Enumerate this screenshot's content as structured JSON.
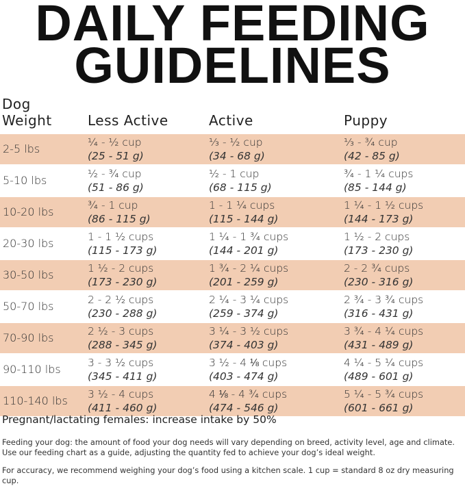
{
  "title": {
    "line1": "DAILY FEEDING",
    "line2": "GUIDELINES"
  },
  "table": {
    "headers": {
      "weight_line1": "Dog",
      "weight_line2": "Weight",
      "less_active": "Less Active",
      "active": "Active",
      "puppy": "Puppy"
    },
    "rows": [
      {
        "weight": "2-5 lbs",
        "less_cup": "¼ - ½ cup",
        "less_g": "(25 - 51 g)",
        "act_cup": "⅓ - ½ cup",
        "act_g": "(34 - 68 g)",
        "pup_cup": "⅓ - ¾ cup",
        "pup_g": "(42 - 85 g)"
      },
      {
        "weight": "5-10 lbs",
        "less_cup": "½ - ¾ cup",
        "less_g": "(51 - 86 g)",
        "act_cup": "½ - 1 cup",
        "act_g": "(68 - 115 g)",
        "pup_cup": "¾ - 1 ¼ cups",
        "pup_g": "(85 - 144 g)"
      },
      {
        "weight": "10-20 lbs",
        "less_cup": "¾ - 1 cup",
        "less_g": "(86 - 115 g)",
        "act_cup": "1 - 1 ¼ cups",
        "act_g": "(115 - 144 g)",
        "pup_cup": "1 ¼ - 1 ½ cups",
        "pup_g": "(144 - 173 g)"
      },
      {
        "weight": "20-30 lbs",
        "less_cup": "1 - 1 ½ cups",
        "less_g": "(115 - 173 g)",
        "act_cup": "1 ¼ - 1 ¾ cups",
        "act_g": "(144 - 201 g)",
        "pup_cup": "1 ½ - 2 cups",
        "pup_g": "(173 - 230 g)"
      },
      {
        "weight": "30-50 lbs",
        "less_cup": "1 ½ - 2 cups",
        "less_g": "(173 - 230 g)",
        "act_cup": "1 ¾ - 2 ¼ cups",
        "act_g": "(201 - 259 g)",
        "pup_cup": "2 - 2 ¾ cups",
        "pup_g": "(230 - 316 g)"
      },
      {
        "weight": "50-70 lbs",
        "less_cup": "2 - 2 ½ cups",
        "less_g": "(230 - 288 g)",
        "act_cup": "2 ¼ - 3 ¼ cups",
        "act_g": "(259 - 374 g)",
        "pup_cup": "2 ¾ - 3 ¾ cups",
        "pup_g": "(316 - 431 g)"
      },
      {
        "weight": "70-90 lbs",
        "less_cup": "2 ½ - 3 cups",
        "less_g": "(288 - 345 g)",
        "act_cup": "3 ¼ - 3 ½ cups",
        "act_g": "(374 - 403 g)",
        "pup_cup": "3 ¾ - 4 ¼ cups",
        "pup_g": "(431 - 489 g)"
      },
      {
        "weight": "90-110 lbs",
        "less_cup": "3 - 3 ½ cups",
        "less_g": "(345 - 411 g)",
        "act_cup": "3 ½ - 4 ⅛ cups",
        "act_g": "(403 - 474 g)",
        "pup_cup": "4 ¼ - 5 ¼ cups",
        "pup_g": "(489 - 601 g)"
      },
      {
        "weight": "110-140 lbs",
        "less_cup": "3 ½ - 4 cups",
        "less_g": "(411 - 460 g)",
        "act_cup": "4 ⅛ - 4 ¾ cups",
        "act_g": "(474 - 546 g)",
        "pup_cup": "5 ¼ - 5 ¾ cups",
        "pup_g": "(601 - 661 g)"
      }
    ],
    "stripe_color": "#f2cdb3"
  },
  "pregnant_note": "Pregnant/lactating females: increase intake by 50%",
  "notes": [
    "Feeding your dog: the amount of food your dog needs will vary depending on breed, activity level, age and climate. Use our feeding chart as a guide, adjusting the quantity fed to achieve your dog’s ideal weight.",
    "For accuracy, we recommend weighing your dog’s food using a kitchen scale. 1 cup = standard 8 oz dry measuring cup."
  ]
}
